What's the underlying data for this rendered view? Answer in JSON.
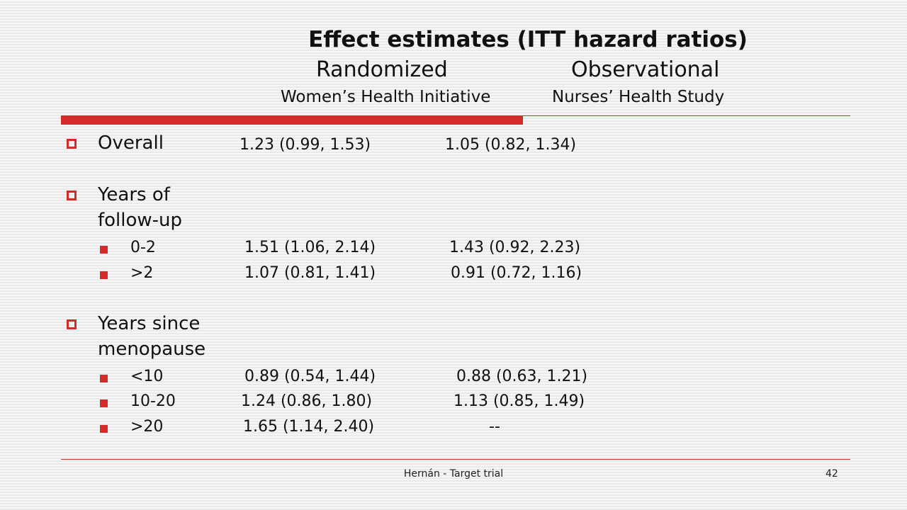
{
  "slide": {
    "title": "Effect estimates (ITT hazard ratios)",
    "columns": {
      "randomized": {
        "heading": "Randomized",
        "subheading": "Women’s Health Initiative"
      },
      "observational": {
        "heading": "Observational",
        "subheading": "Nurses’ Health Study"
      }
    },
    "overall": {
      "label": "Overall",
      "randomized": "1.23 (0.99, 1.53)",
      "observational": "1.05 (0.82, 1.34)"
    },
    "followup": {
      "label_line1": "Years of",
      "label_line2": "follow-up",
      "rows": [
        {
          "label": "0-2",
          "randomized": "1.51 (1.06, 2.14)",
          "observational": "1.43 (0.92, 2.23)"
        },
        {
          "label": ">2",
          "randomized": "1.07 (0.81, 1.41)",
          "observational": "0.91 (0.72, 1.16)"
        }
      ]
    },
    "menopause": {
      "label_line1": "Years since",
      "label_line2": "menopause",
      "rows": [
        {
          "label": "<10",
          "randomized": "0.89 (0.54, 1.44)",
          "observational": "0.88 (0.63, 1.21)"
        },
        {
          "label": "10-20",
          "randomized": "1.24 (0.86, 1.80)",
          "observational": "1.13 (0.85, 1.49)"
        },
        {
          "label": ">20",
          "randomized": "1.65 (1.14, 2.40)",
          "observational": "--"
        }
      ]
    },
    "footer": "Hernán - Target trial",
    "page_number": "42",
    "accent_color": "#d42a2a"
  }
}
